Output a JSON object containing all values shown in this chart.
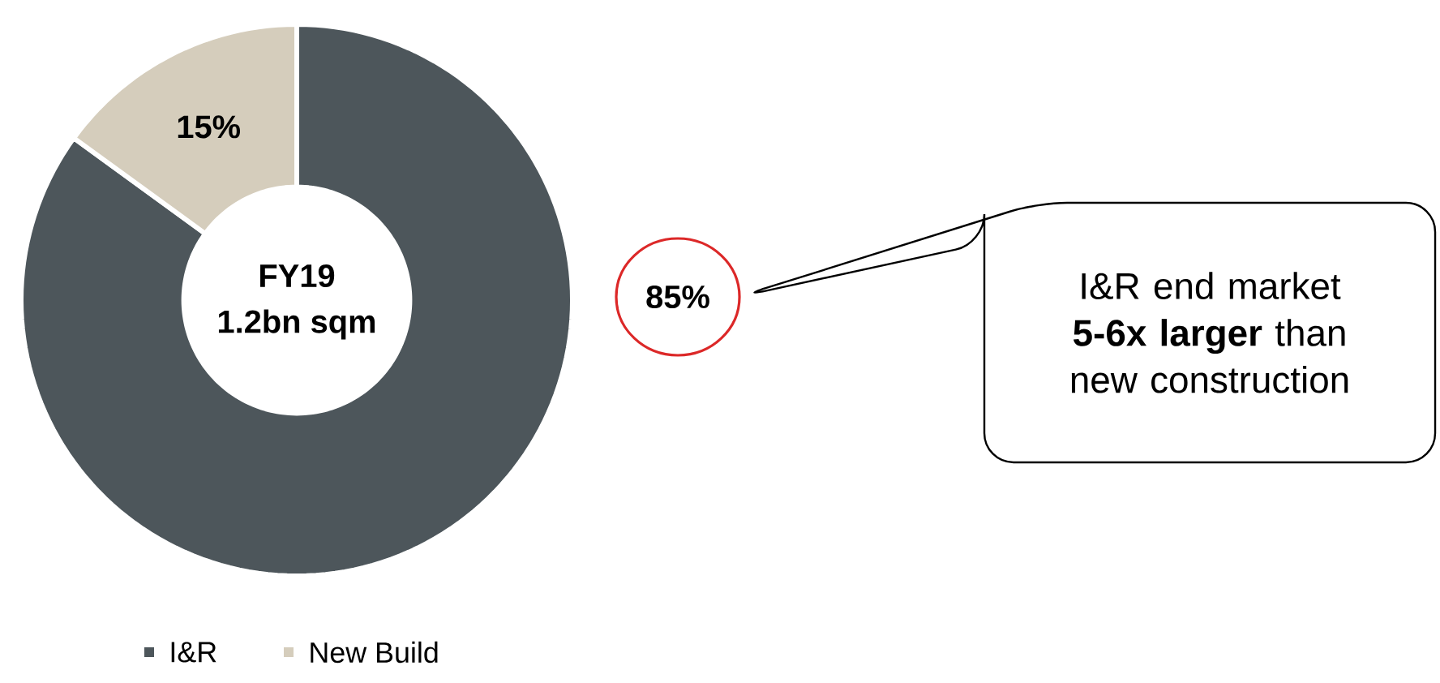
{
  "chart_data": {
    "type": "donut",
    "categories": [
      "I&R",
      "New Build"
    ],
    "values": [
      85,
      15
    ],
    "colors": [
      "#4d565b",
      "#d5cdbc"
    ],
    "value_labels": [
      "85%",
      "15%"
    ],
    "legend": "bottom",
    "annotations": [
      "FY19",
      "1.2bn sqm",
      "I&R end market **5-6x larger** than new construction"
    ]
  }
}
